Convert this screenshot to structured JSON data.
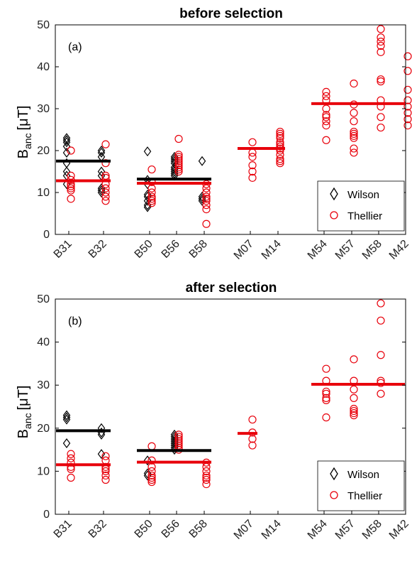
{
  "colors": {
    "wilson": "#000000",
    "thellier": "#e8000b"
  },
  "chart_data": [
    {
      "type": "scatter",
      "title": "before selection",
      "panel_label": "(a)",
      "ylabel": {
        "main": "B",
        "sub": "anc",
        "unit": "[μT]"
      },
      "ylim": [
        0,
        50
      ],
      "yticks": [
        "0",
        "10",
        "20",
        "30",
        "40",
        "50"
      ],
      "categories": [
        "B31",
        "B32",
        "B50",
        "B56",
        "B58",
        "M07",
        "M14",
        "M54",
        "M57",
        "M58",
        "M42"
      ],
      "legend": {
        "position": "bottom-right",
        "entries": [
          "Wilson",
          "Thellier"
        ]
      },
      "series": [
        {
          "name": "Wilson",
          "marker": "diamond",
          "points": [
            [
              "B31",
              23
            ],
            [
              "B31",
              22.5
            ],
            [
              "B31",
              22
            ],
            [
              "B31",
              21
            ],
            [
              "B31",
              19.5
            ],
            [
              "B31",
              17
            ],
            [
              "B31",
              15
            ],
            [
              "B31",
              14
            ],
            [
              "B31",
              12
            ],
            [
              "B32",
              20
            ],
            [
              "B32",
              19.5
            ],
            [
              "B32",
              18.5
            ],
            [
              "B32",
              15
            ],
            [
              "B32",
              14
            ],
            [
              "B32",
              11
            ],
            [
              "B32",
              10.5
            ],
            [
              "B32",
              10
            ],
            [
              "B50",
              19.8
            ],
            [
              "B50",
              13
            ],
            [
              "B50",
              12
            ],
            [
              "B50",
              9.5
            ],
            [
              "B50",
              9
            ],
            [
              "B50",
              8
            ],
            [
              "B50",
              7
            ],
            [
              "B50",
              6.5
            ],
            [
              "B56",
              18.5
            ],
            [
              "B56",
              18
            ],
            [
              "B56",
              17.5
            ],
            [
              "B56",
              17
            ],
            [
              "B56",
              16
            ],
            [
              "B56",
              15.5
            ],
            [
              "B56",
              15
            ],
            [
              "B56",
              14.5
            ],
            [
              "B56",
              14
            ],
            [
              "B58",
              17.5
            ],
            [
              "B58",
              9
            ],
            [
              "B58",
              8.5
            ],
            [
              "B58",
              8
            ]
          ],
          "mean_lines": [
            {
              "from": "B31",
              "to": "B32",
              "value": 17.5
            },
            {
              "from": "B50",
              "to": "B58",
              "value": 13.2
            }
          ]
        },
        {
          "name": "Thellier",
          "marker": "circle",
          "points": [
            [
              "B31",
              20
            ],
            [
              "B31",
              14
            ],
            [
              "B31",
              13
            ],
            [
              "B31",
              12
            ],
            [
              "B31",
              11.5
            ],
            [
              "B31",
              11
            ],
            [
              "B31",
              10.5
            ],
            [
              "B31",
              8.5
            ],
            [
              "B32",
              21.5
            ],
            [
              "B32",
              17
            ],
            [
              "B32",
              14
            ],
            [
              "B32",
              13.5
            ],
            [
              "B32",
              12
            ],
            [
              "B32",
              11
            ],
            [
              "B32",
              10
            ],
            [
              "B32",
              9
            ],
            [
              "B32",
              8
            ],
            [
              "B50",
              15.5
            ],
            [
              "B50",
              12.5
            ],
            [
              "B50",
              11
            ],
            [
              "B50",
              10
            ],
            [
              "B50",
              9
            ],
            [
              "B50",
              8.5
            ],
            [
              "B50",
              8
            ],
            [
              "B50",
              7.5
            ],
            [
              "B56",
              22.8
            ],
            [
              "B56",
              19
            ],
            [
              "B56",
              18.5
            ],
            [
              "B56",
              18
            ],
            [
              "B56",
              17.5
            ],
            [
              "B56",
              17
            ],
            [
              "B56",
              16.5
            ],
            [
              "B56",
              16
            ],
            [
              "B56",
              15.5
            ],
            [
              "B56",
              15
            ],
            [
              "B58",
              12
            ],
            [
              "B58",
              11
            ],
            [
              "B58",
              10
            ],
            [
              "B58",
              9
            ],
            [
              "B58",
              8.5
            ],
            [
              "B58",
              8
            ],
            [
              "B58",
              7
            ],
            [
              "B58",
              6
            ],
            [
              "B58",
              2.5
            ],
            [
              "M07",
              22
            ],
            [
              "M07",
              19.5
            ],
            [
              "M07",
              18.5
            ],
            [
              "M07",
              16.5
            ],
            [
              "M07",
              15
            ],
            [
              "M07",
              13.5
            ],
            [
              "M14",
              24.5
            ],
            [
              "M14",
              24
            ],
            [
              "M14",
              23.5
            ],
            [
              "M14",
              23
            ],
            [
              "M14",
              22
            ],
            [
              "M14",
              21.5
            ],
            [
              "M14",
              21
            ],
            [
              "M14",
              20.5
            ],
            [
              "M14",
              20
            ],
            [
              "M14",
              19
            ],
            [
              "M14",
              18
            ],
            [
              "M14",
              17.5
            ],
            [
              "M14",
              17
            ],
            [
              "M54",
              34
            ],
            [
              "M54",
              33
            ],
            [
              "M54",
              32
            ],
            [
              "M54",
              30
            ],
            [
              "M54",
              28.5
            ],
            [
              "M54",
              28
            ],
            [
              "M54",
              27
            ],
            [
              "M54",
              26
            ],
            [
              "M54",
              22.5
            ],
            [
              "M57",
              36
            ],
            [
              "M57",
              31
            ],
            [
              "M57",
              29
            ],
            [
              "M57",
              27
            ],
            [
              "M57",
              24.5
            ],
            [
              "M57",
              24
            ],
            [
              "M57",
              23.5
            ],
            [
              "M57",
              23
            ],
            [
              "M57",
              20.5
            ],
            [
              "M57",
              19.5
            ],
            [
              "M58",
              49
            ],
            [
              "M58",
              47
            ],
            [
              "M58",
              46
            ],
            [
              "M58",
              45
            ],
            [
              "M58",
              43.5
            ],
            [
              "M58",
              37
            ],
            [
              "M58",
              36.5
            ],
            [
              "M58",
              32
            ],
            [
              "M58",
              30.5
            ],
            [
              "M58",
              28
            ],
            [
              "M58",
              25.5
            ],
            [
              "M42",
              42.5
            ],
            [
              "M42",
              39
            ],
            [
              "M42",
              34.5
            ],
            [
              "M42",
              32
            ],
            [
              "M42",
              30.5
            ],
            [
              "M42",
              29
            ],
            [
              "M42",
              27.5
            ],
            [
              "M42",
              26
            ]
          ],
          "mean_lines": [
            {
              "from": "B31",
              "to": "B32",
              "value": 12.8
            },
            {
              "from": "B50",
              "to": "B58",
              "value": 12.2
            },
            {
              "from": "M07",
              "to": "M14",
              "value": 20.5
            },
            {
              "from": "M54",
              "to": "M42",
              "value": 31.2
            }
          ]
        }
      ]
    },
    {
      "type": "scatter",
      "title": "after selection",
      "panel_label": "(b)",
      "ylabel": {
        "main": "B",
        "sub": "anc",
        "unit": "[μT]"
      },
      "ylim": [
        0,
        50
      ],
      "yticks": [
        "0",
        "10",
        "20",
        "30",
        "40",
        "50"
      ],
      "categories": [
        "B31",
        "B32",
        "B50",
        "B56",
        "B58",
        "M07",
        "M14",
        "M54",
        "M57",
        "M58",
        "M42"
      ],
      "legend": {
        "position": "bottom-right",
        "entries": [
          "Wilson",
          "Thellier"
        ]
      },
      "series": [
        {
          "name": "Wilson",
          "marker": "diamond",
          "points": [
            [
              "B31",
              23
            ],
            [
              "B31",
              22.5
            ],
            [
              "B31",
              22
            ],
            [
              "B31",
              16.5
            ],
            [
              "B32",
              20
            ],
            [
              "B32",
              19
            ],
            [
              "B32",
              18.5
            ],
            [
              "B32",
              14
            ],
            [
              "B50",
              12.5
            ],
            [
              "B50",
              9.5
            ],
            [
              "B50",
              9
            ],
            [
              "B56",
              18.5
            ],
            [
              "B56",
              18
            ],
            [
              "B56",
              17.5
            ],
            [
              "B56",
              17
            ],
            [
              "B56",
              16.5
            ],
            [
              "B56",
              16
            ],
            [
              "B56",
              15.5
            ],
            [
              "B56",
              15
            ]
          ],
          "mean_lines": [
            {
              "from": "B31",
              "to": "B32",
              "value": 19.4
            },
            {
              "from": "B50",
              "to": "B58",
              "value": 14.8
            }
          ]
        },
        {
          "name": "Thellier",
          "marker": "circle",
          "points": [
            [
              "B31",
              14
            ],
            [
              "B31",
              13
            ],
            [
              "B31",
              12
            ],
            [
              "B31",
              11
            ],
            [
              "B31",
              10.5
            ],
            [
              "B31",
              8.5
            ],
            [
              "B32",
              13.5
            ],
            [
              "B32",
              12.5
            ],
            [
              "B32",
              11
            ],
            [
              "B32",
              10.5
            ],
            [
              "B32",
              10
            ],
            [
              "B32",
              9
            ],
            [
              "B32",
              8
            ],
            [
              "B50",
              15.8
            ],
            [
              "B50",
              12.5
            ],
            [
              "B50",
              11
            ],
            [
              "B50",
              10
            ],
            [
              "B50",
              9
            ],
            [
              "B50",
              8.5
            ],
            [
              "B50",
              8
            ],
            [
              "B50",
              7.5
            ],
            [
              "B56",
              18.5
            ],
            [
              "B56",
              18
            ],
            [
              "B56",
              17.5
            ],
            [
              "B56",
              17
            ],
            [
              "B56",
              16.5
            ],
            [
              "B56",
              16
            ],
            [
              "B56",
              15.5
            ],
            [
              "B56",
              15
            ],
            [
              "B58",
              12
            ],
            [
              "B58",
              11
            ],
            [
              "B58",
              10
            ],
            [
              "B58",
              9
            ],
            [
              "B58",
              8.5
            ],
            [
              "B58",
              8
            ],
            [
              "B58",
              7
            ],
            [
              "M07",
              22
            ],
            [
              "M07",
              19
            ],
            [
              "M07",
              17.5
            ],
            [
              "M07",
              16
            ],
            [
              "M54",
              33.8
            ],
            [
              "M54",
              31
            ],
            [
              "M54",
              28.5
            ],
            [
              "M54",
              28
            ],
            [
              "M54",
              27
            ],
            [
              "M54",
              26.5
            ],
            [
              "M54",
              22.5
            ],
            [
              "M57",
              36
            ],
            [
              "M57",
              31
            ],
            [
              "M57",
              29
            ],
            [
              "M57",
              27
            ],
            [
              "M57",
              24.5
            ],
            [
              "M57",
              24
            ],
            [
              "M57",
              23.5
            ],
            [
              "M57",
              23
            ],
            [
              "M58",
              49
            ],
            [
              "M58",
              45
            ],
            [
              "M58",
              37
            ],
            [
              "M58",
              31
            ],
            [
              "M58",
              30.5
            ],
            [
              "M58",
              28
            ]
          ],
          "mean_lines": [
            {
              "from": "B31",
              "to": "B32",
              "value": 11.5
            },
            {
              "from": "B50",
              "to": "B58",
              "value": 12.1
            },
            {
              "from": "M07",
              "to": "M07",
              "value": 18.8
            },
            {
              "from": "M54",
              "to": "M42",
              "value": 30.2
            }
          ]
        }
      ]
    }
  ]
}
